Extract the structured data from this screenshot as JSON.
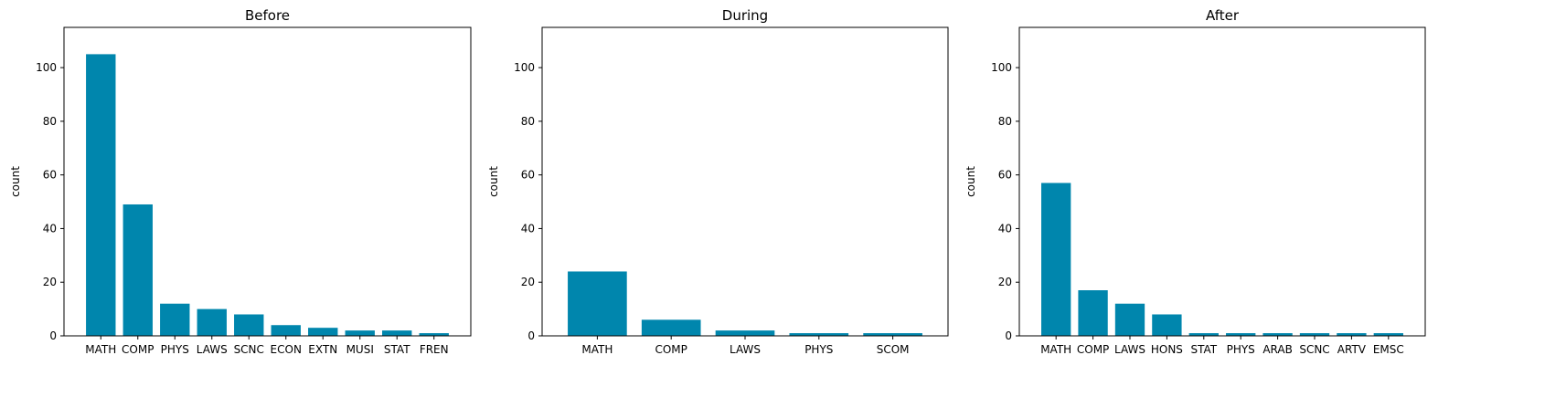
{
  "colors": {
    "bar": "#0086ad",
    "axis": "#000000",
    "background": "#ffffff"
  },
  "chart_data": [
    {
      "type": "bar",
      "title": "Before",
      "xlabel": "",
      "ylabel": "count",
      "ylim": [
        0,
        115
      ],
      "yticks": [
        0,
        20,
        40,
        60,
        80,
        100
      ],
      "grid": false,
      "categories": [
        "MATH",
        "COMP",
        "PHYS",
        "LAWS",
        "SCNC",
        "ECON",
        "EXTN",
        "MUSI",
        "STAT",
        "FREN"
      ],
      "values": [
        105,
        49,
        12,
        10,
        8,
        4,
        3,
        2,
        2,
        1
      ]
    },
    {
      "type": "bar",
      "title": "During",
      "xlabel": "",
      "ylabel": "count",
      "ylim": [
        0,
        115
      ],
      "yticks": [
        0,
        20,
        40,
        60,
        80,
        100
      ],
      "grid": false,
      "categories": [
        "MATH",
        "COMP",
        "LAWS",
        "PHYS",
        "SCOM"
      ],
      "values": [
        24,
        6,
        2,
        1,
        1
      ]
    },
    {
      "type": "bar",
      "title": "After",
      "xlabel": "",
      "ylabel": "count",
      "ylim": [
        0,
        115
      ],
      "yticks": [
        0,
        20,
        40,
        60,
        80,
        100
      ],
      "grid": false,
      "categories": [
        "MATH",
        "COMP",
        "LAWS",
        "HONS",
        "STAT",
        "PHYS",
        "ARAB",
        "SCNC",
        "ARTV",
        "EMSC"
      ],
      "values": [
        57,
        17,
        12,
        8,
        1,
        1,
        1,
        1,
        1,
        1
      ]
    }
  ]
}
